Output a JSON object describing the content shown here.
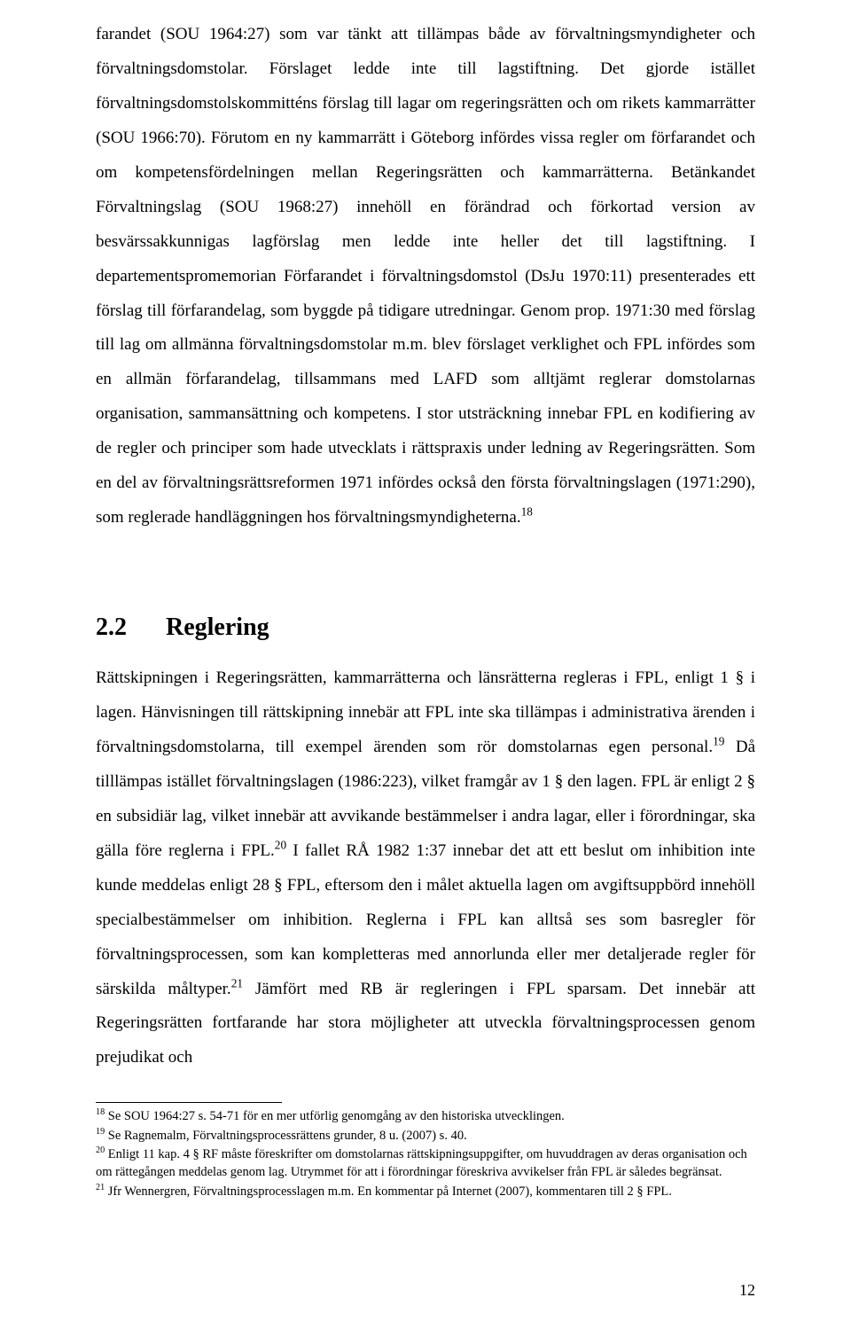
{
  "body": {
    "p1": "farandet (SOU 1964:27) som var tänkt att tillämpas både av förvaltningsmyndigheter och förvaltningsdomstolar. Förslaget ledde inte till lagstiftning. Det gjorde istället förvaltningsdomstolskommitténs förslag till lagar om regeringsrätten och om rikets kammarrätter (SOU 1966:70). Förutom en ny kammarrätt i Göteborg infördes vissa regler om förfarandet och om kompetensfördelningen mellan Regeringsrätten och kammarrätterna. Betänkandet Förvaltningslag (SOU 1968:27) innehöll en förändrad och förkortad version av besvärssakkunnigas lagförslag men ledde inte heller det till lagstiftning. I departementspromemorian Förfarandet i förvaltningsdomstol (DsJu 1970:11) presenterades ett förslag till förfarandelag, som byggde på tidigare utredningar. Genom prop. 1971:30 med förslag till lag om allmänna förvaltningsdomstolar m.m. blev förslaget verklighet och FPL infördes som en allmän förfarandelag, tillsammans med LAFD som alltjämt reglerar domstolarnas organisation, sammansättning och kompetens. I stor utsträckning innebar FPL en kodifiering av de regler och principer som hade utvecklats i rättspraxis under ledning av Regeringsrätten. Som en del av förvaltningsrättsreformen 1971 infördes också den första förvaltningslagen (1971:290), som reglerade handläggningen hos förvaltningsmyndigheterna.",
    "p1_sup": "18"
  },
  "heading": {
    "num": "2.2",
    "title": "Reglering"
  },
  "body2": {
    "seg1": "Rättskipningen i Regeringsrätten, kammarrätterna och länsrätterna regleras i FPL, enligt 1 § i lagen. Hänvisningen till rättskipning innebär att FPL inte ska tillämpas i administrativa ärenden i förvaltningsdomstolarna, till exempel ärenden som rör domstolarnas egen personal.",
    "sup1": "19",
    "seg2": " Då tilllämpas istället förvaltningslagen (1986:223), vilket framgår av 1 § den lagen. FPL är enligt 2 § en subsidiär lag, vilket innebär att avvikande bestämmelser i andra lagar, eller i förordningar, ska gälla före reglerna i FPL.",
    "sup2": "20",
    "seg3": " I fallet RÅ 1982 1:37 innebar det att ett beslut om inhibition inte kunde meddelas enligt 28 § FPL, eftersom den i målet aktuella lagen om avgiftsuppbörd innehöll specialbestämmelser om inhibition. Reglerna i FPL kan alltså ses som basregler för förvaltningsprocessen, som kan kompletteras med annorlunda eller mer detaljerade regler för särskilda måltyper.",
    "sup3": "21",
    "seg4": " Jämfört med RB är regleringen i FPL sparsam. Det innebär att Regeringsrätten fortfarande har stora möjligheter att utveckla förvaltningsprocessen genom prejudikat och"
  },
  "footnotes": {
    "f18_num": "18",
    "f18_text": " Se SOU 1964:27 s. 54-71 för en mer utförlig genomgång av den historiska utvecklingen.",
    "f19_num": "19",
    "f19_text": " Se Ragnemalm, Förvaltningsprocessrättens grunder, 8 u. (2007) s. 40.",
    "f20_num": "20",
    "f20_text": " Enligt 11 kap. 4 § RF måste föreskrifter om domstolarnas rättskipningsuppgifter, om huvuddragen av deras organisation och om rättegången meddelas genom lag. Utrymmet för att i förordningar föreskriva avvikelser från FPL är således begränsat.",
    "f21_num": "21",
    "f21_text": " Jfr Wennergren, Förvaltningsprocesslagen m.m. En kommentar på Internet (2007), kommentaren till 2 § FPL."
  },
  "page_number": "12"
}
